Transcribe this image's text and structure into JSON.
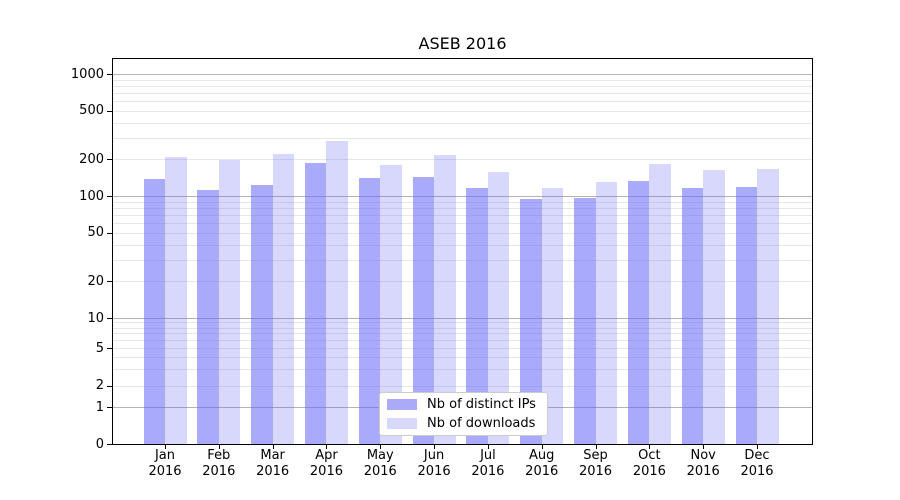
{
  "title": "ASEB 2016",
  "chart_data": {
    "type": "bar",
    "title": "ASEB 2016",
    "categories": [
      {
        "month": "Jan",
        "year": "2016"
      },
      {
        "month": "Feb",
        "year": "2016"
      },
      {
        "month": "Mar",
        "year": "2016"
      },
      {
        "month": "Apr",
        "year": "2016"
      },
      {
        "month": "May",
        "year": "2016"
      },
      {
        "month": "Jun",
        "year": "2016"
      },
      {
        "month": "Jul",
        "year": "2016"
      },
      {
        "month": "Aug",
        "year": "2016"
      },
      {
        "month": "Sep",
        "year": "2016"
      },
      {
        "month": "Oct",
        "year": "2016"
      },
      {
        "month": "Nov",
        "year": "2016"
      },
      {
        "month": "Dec",
        "year": "2016"
      }
    ],
    "series": [
      {
        "name": "Nb of distinct IPs",
        "color_rendered": "#aaaaf9",
        "color_rgba": "rgba(100,100,245,0.55)",
        "values": [
          137,
          112,
          123,
          185,
          140,
          142,
          116,
          95,
          97,
          133,
          117,
          119
        ]
      },
      {
        "name": "Nb of downloads",
        "color_rendered": "#d8d8fa",
        "color_rgba": "rgba(100,100,245,0.25)",
        "values": [
          207,
          198,
          220,
          285,
          180,
          216,
          158,
          116,
          131,
          183,
          164,
          168
        ]
      }
    ],
    "yscale": "log-like (logarithmic above 10, compressed toward 0 baseline)",
    "ytick_labels": [
      "1000",
      "500",
      "200",
      "100",
      "50",
      "20",
      "10",
      "5",
      "2",
      "1",
      "0"
    ],
    "ytick_values": [
      1000,
      500,
      200,
      100,
      50,
      20,
      10,
      5,
      2,
      1,
      0
    ],
    "ylim": [
      0,
      1330
    ],
    "grid": "horizontal major + minor",
    "legend_position": "lower center"
  }
}
